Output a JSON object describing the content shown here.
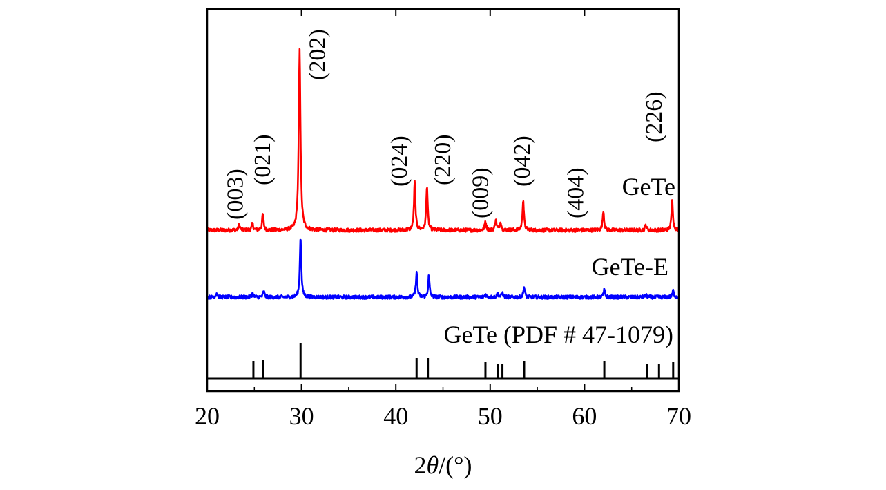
{
  "chart_data": {
    "type": "line",
    "title": "",
    "xlabel": {
      "prefix": "2",
      "italic": "θ",
      "suffix": "/(°)"
    },
    "ylabel": "",
    "xlim": [
      20,
      70
    ],
    "xticks": [
      20,
      30,
      40,
      50,
      60,
      70
    ],
    "yticks_shown": false,
    "series": [
      {
        "name": "GeTe",
        "label": "GeTe",
        "color": "#ff0000",
        "peaks": [
          [
            23.4,
            1.5
          ],
          [
            24.8,
            1.8
          ],
          [
            25.9,
            4.5
          ],
          [
            29.8,
            50
          ],
          [
            42.0,
            13.5
          ],
          [
            43.3,
            12.5
          ],
          [
            49.5,
            2.5
          ],
          [
            50.6,
            3.0
          ],
          [
            51.1,
            2.5
          ],
          [
            53.5,
            8.5
          ],
          [
            62.0,
            5.5
          ],
          [
            66.5,
            1.5
          ],
          [
            69.3,
            8.5
          ]
        ]
      },
      {
        "name": "GeTe-E",
        "label": "GeTe-E",
        "color": "#0000ff",
        "peaks": [
          [
            21.0,
            1.2
          ],
          [
            24.8,
            1.0
          ],
          [
            26.0,
            1.6
          ],
          [
            29.9,
            17
          ],
          [
            42.2,
            7.0
          ],
          [
            43.5,
            6.0
          ],
          [
            49.5,
            0.8
          ],
          [
            50.8,
            1.1
          ],
          [
            51.3,
            1.2
          ],
          [
            53.6,
            2.8
          ],
          [
            62.1,
            2.0
          ],
          [
            66.5,
            0.6
          ],
          [
            69.4,
            1.8
          ]
        ]
      }
    ],
    "reference": {
      "name": "GeTe (PDF # 47-1079)",
      "label": "GeTe (PDF # 47-1079)",
      "color": "#000000",
      "lines": [
        [
          24.9,
          25
        ],
        [
          25.9,
          27
        ],
        [
          29.9,
          52
        ],
        [
          42.2,
          30
        ],
        [
          43.4,
          30
        ],
        [
          49.5,
          24
        ],
        [
          50.8,
          21
        ],
        [
          51.3,
          22
        ],
        [
          53.6,
          26
        ],
        [
          62.1,
          25
        ],
        [
          66.6,
          22
        ],
        [
          67.9,
          22
        ],
        [
          69.4,
          24
        ]
      ]
    },
    "annotations": [
      {
        "text": "(003)",
        "x": 23.2,
        "series": "GeTe"
      },
      {
        "text": "(021)",
        "x": 26.1,
        "series": "GeTe"
      },
      {
        "text": "(202)",
        "x": 31.9,
        "series": "GeTe"
      },
      {
        "text": "(024)",
        "x": 40.6,
        "series": "GeTe"
      },
      {
        "text": "(220)",
        "x": 45.2,
        "series": "GeTe"
      },
      {
        "text": "(009)",
        "x": 49.2,
        "series": "GeTe"
      },
      {
        "text": "(042)",
        "x": 53.6,
        "series": "GeTe"
      },
      {
        "text": "(404)",
        "x": 59.3,
        "series": "GeTe"
      },
      {
        "text": "(226)",
        "x": 67.6,
        "series": "GeTe"
      }
    ]
  }
}
